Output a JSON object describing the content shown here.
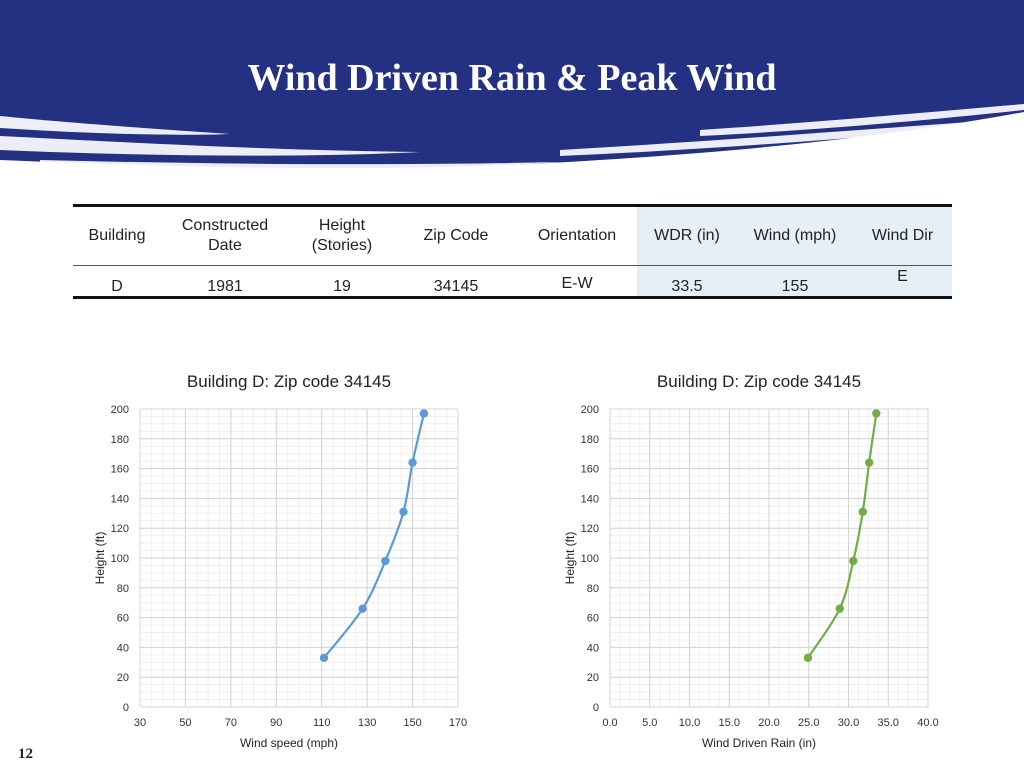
{
  "slide": {
    "title": "Wind Driven Rain & Peak Wind",
    "page_number": "12"
  },
  "colors": {
    "banner": "#243183",
    "banner_streak": "#ffffff",
    "table_highlight": "#e6eef8",
    "series_wind": "#5b9bd5",
    "series_wdr": "#70ad47"
  },
  "table": {
    "headers": [
      "Building",
      "Constructed Date",
      "Height (Stories)",
      "Zip Code",
      "Orientation",
      "WDR (in)",
      "Wind  (mph)",
      "Wind Dir"
    ],
    "header_lines": [
      [
        "Building"
      ],
      [
        "Constructed",
        "Date"
      ],
      [
        "Height",
        "(Stories)"
      ],
      [
        "Zip Code"
      ],
      [
        "Orientation"
      ],
      [
        "WDR (in)"
      ],
      [
        "Wind  (mph)"
      ],
      [
        "Wind Dir"
      ]
    ],
    "rows": [
      [
        "D",
        "1981",
        "19",
        "34145",
        "E-W",
        "33.5",
        "155",
        "E"
      ]
    ],
    "highlighted_columns": [
      5,
      6,
      7
    ]
  },
  "chart_data": [
    {
      "type": "line",
      "title": "Building D: Zip code 34145",
      "xlabel": "Wind speed (mph)",
      "ylabel": "Height (ft)",
      "xlim": [
        30,
        170
      ],
      "ylim": [
        0,
        200
      ],
      "xticks": [
        "30",
        "50",
        "70",
        "90",
        "110",
        "130",
        "150",
        "170"
      ],
      "yticks": [
        "0",
        "20",
        "40",
        "60",
        "80",
        "100",
        "120",
        "140",
        "160",
        "180",
        "200"
      ],
      "grid": true,
      "marker": "circle",
      "color": "#5b9bd5",
      "series": [
        {
          "x": [
            111,
            128,
            138,
            146,
            150,
            155
          ],
          "y": [
            33,
            66,
            98,
            131,
            164,
            197
          ]
        }
      ]
    },
    {
      "type": "line",
      "title": "Building D: Zip code 34145",
      "xlabel": "Wind Driven Rain (in)",
      "ylabel": "Height (ft)",
      "xlim": [
        0,
        40
      ],
      "ylim": [
        0,
        200
      ],
      "xticks": [
        "0.0",
        "5.0",
        "10.0",
        "15.0",
        "20.0",
        "25.0",
        "30.0",
        "35.0",
        "40.0"
      ],
      "yticks": [
        "0",
        "20",
        "40",
        "60",
        "80",
        "100",
        "120",
        "140",
        "160",
        "180",
        "200"
      ],
      "grid": true,
      "marker": "circle",
      "color": "#70ad47",
      "series": [
        {
          "x": [
            24.9,
            28.9,
            30.6,
            31.8,
            32.6,
            33.5
          ],
          "y": [
            33,
            66,
            98,
            131,
            164,
            197
          ]
        }
      ]
    }
  ]
}
